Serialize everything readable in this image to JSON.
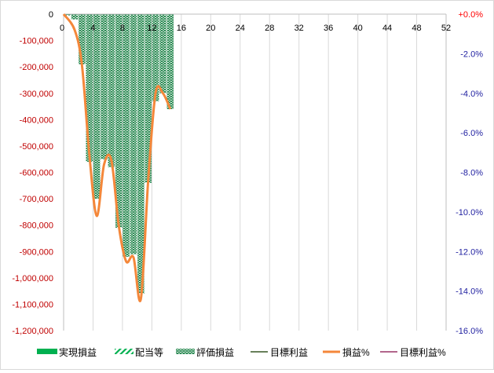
{
  "chart_data": {
    "type": "bar",
    "title": "",
    "x": {
      "range": [
        0,
        52
      ],
      "ticks": [
        "0",
        "4",
        "8",
        "12",
        "16",
        "20",
        "24",
        "28",
        "32",
        "36",
        "40",
        "44",
        "48",
        "52"
      ]
    },
    "y_left": {
      "range": [
        -1200000,
        0
      ],
      "ticks": [
        "0",
        "-100,000",
        "-200,000",
        "-300,000",
        "-400,000",
        "-500,000",
        "-600,000",
        "-700,000",
        "-800,000",
        "-900,000",
        "-1,000,000",
        "-1,100,000",
        "-1,200,000"
      ],
      "tick_color": "#c00000",
      "zero_color": "#000000"
    },
    "y_right": {
      "range": [
        -16.0,
        0.0
      ],
      "ticks": [
        "+0.0%",
        "-2.0%",
        "-4.0%",
        "-6.0%",
        "-8.0%",
        "-10.0%",
        "-12.0%",
        "-14.0%",
        "-16.0%"
      ],
      "tick_color": "#1f1fa0",
      "zero_color": "#ff0000"
    },
    "bars": {
      "x": [
        0,
        1,
        2,
        3,
        4,
        5,
        6,
        7,
        8,
        9,
        10,
        11,
        12,
        13,
        14
      ],
      "values": [
        -5000,
        -20000,
        -190000,
        -560000,
        -700000,
        -550000,
        -580000,
        -810000,
        -920000,
        -910000,
        -1060000,
        -640000,
        -330000,
        -300000,
        -360000
      ]
    },
    "series": [
      {
        "name": "実現損益",
        "color": "#00b050",
        "style": "solid-fill"
      },
      {
        "name": "配当等",
        "color": "#00b050",
        "style": "diagonal-hatch"
      },
      {
        "name": "評価損益",
        "color": "#00b050",
        "style": "dotted-fill",
        "values": [
          -5000,
          -20000,
          -190000,
          -560000,
          -700000,
          -550000,
          -580000,
          -810000,
          -920000,
          -910000,
          -1060000,
          -640000,
          -330000,
          -300000,
          -360000
        ]
      },
      {
        "name": "目標利益",
        "color": "#375623",
        "style": "line"
      },
      {
        "name": "損益%",
        "color": "#f4873a",
        "style": "line",
        "axis": "right",
        "x": [
          0,
          1,
          2,
          3,
          4,
          5,
          6,
          7,
          8,
          9,
          10,
          11,
          12,
          13,
          14
        ],
        "values": [
          0.0,
          -0.8,
          -2.6,
          -7.1,
          -10.2,
          -7.6,
          -7.4,
          -10.7,
          -12.5,
          -12.3,
          -14.4,
          -8.4,
          -4.0,
          -4.0,
          -4.8
        ]
      },
      {
        "name": "目標利益%",
        "color": "#993366",
        "style": "line",
        "axis": "right"
      }
    ],
    "grid": {
      "vertical": true,
      "horizontal": false,
      "color": "#d9d9d9"
    },
    "legend_position": "bottom"
  }
}
